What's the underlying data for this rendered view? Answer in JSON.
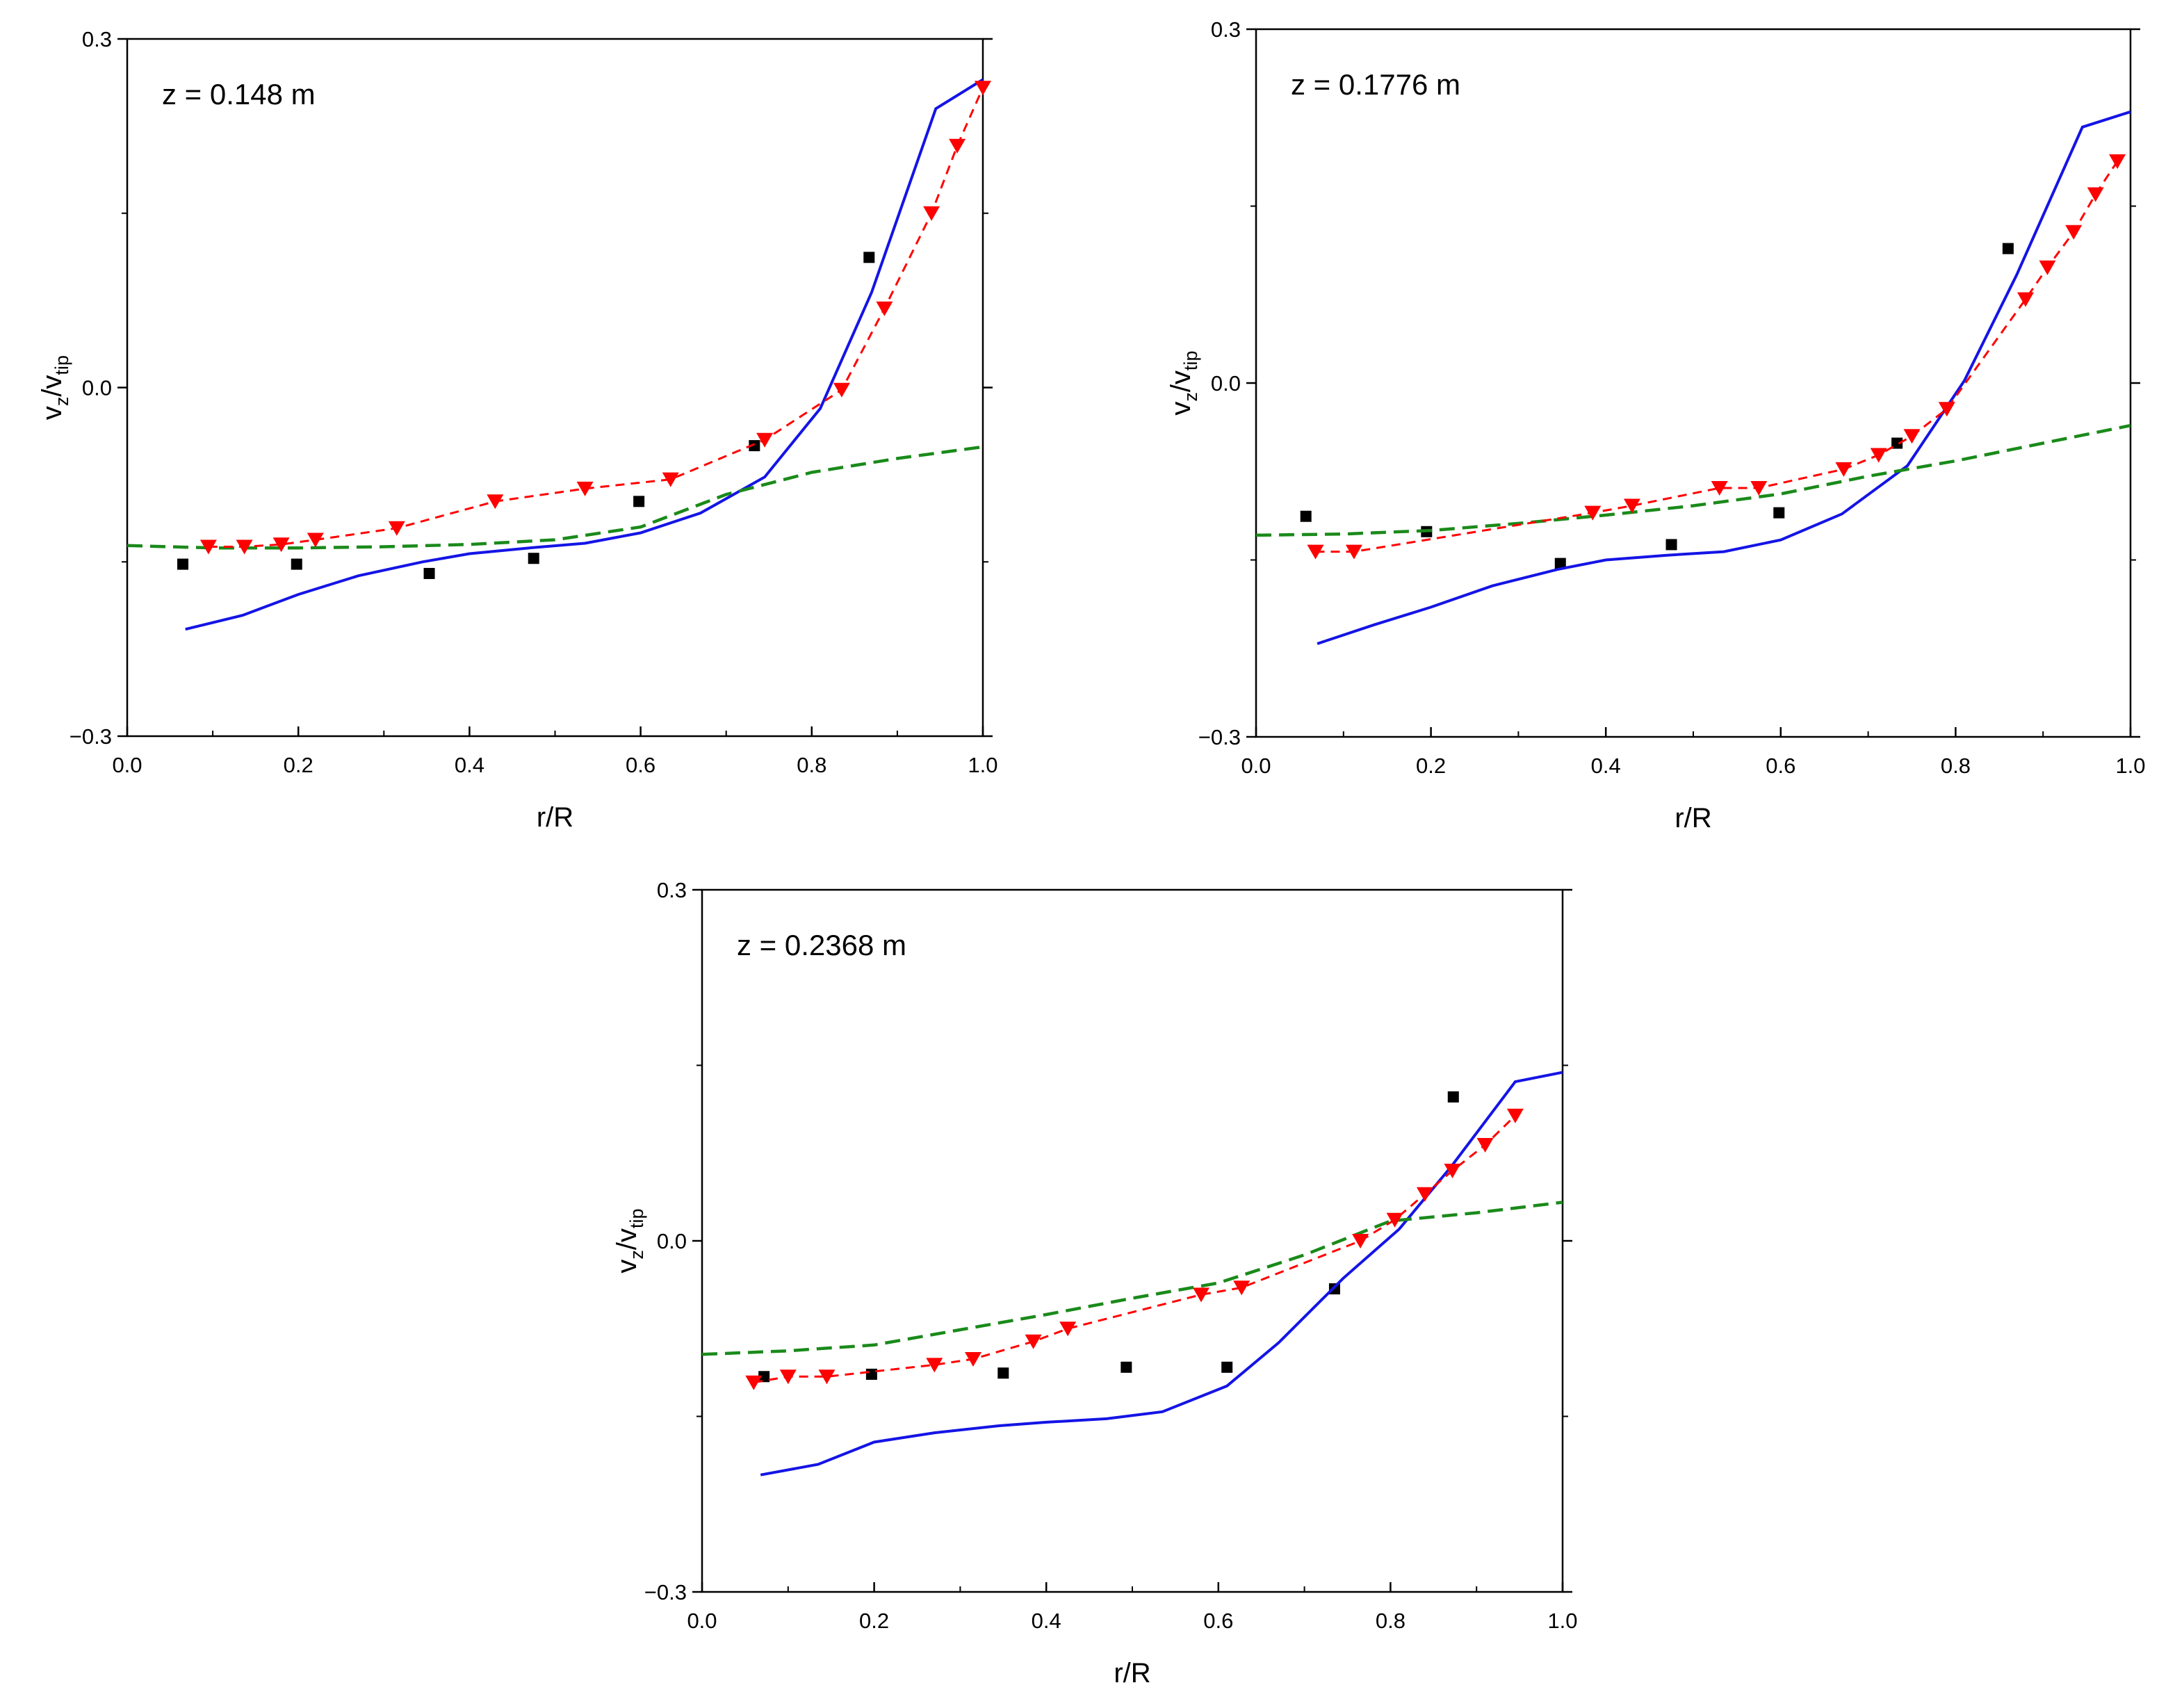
{
  "chart_data": [
    {
      "type": "line",
      "annotation": "z = 0.148 m",
      "xlabel": "r/R",
      "ylabel": {
        "base": "v",
        "sub1": "z",
        "slash": "/v",
        "sub2": "tip"
      },
      "xlim": [
        0.0,
        1.0
      ],
      "ylim": [
        -0.3,
        0.3
      ],
      "xticks": [
        0.0,
        0.2,
        0.4,
        0.6,
        0.8,
        1.0
      ],
      "xtick_labels": [
        "0.0",
        "0.2",
        "0.4",
        "0.6",
        "0.8",
        "1.0"
      ],
      "yticks": [
        -0.3,
        0.0,
        0.3
      ],
      "ytick_labels": [
        "−0.3",
        "0.0",
        "0.3"
      ],
      "series": [
        {
          "name": "experiment-squares",
          "style": "marker-square",
          "color": "#000000",
          "x": [
            0.065,
            0.198,
            0.353,
            0.475,
            0.598,
            0.733,
            0.867
          ],
          "y": [
            -0.152,
            -0.152,
            -0.16,
            -0.147,
            -0.098,
            -0.05,
            0.112
          ]
        },
        {
          "name": "model-blue-solid",
          "style": "solid",
          "color": "#1414e6",
          "x": [
            0.068,
            0.135,
            0.2,
            0.27,
            0.345,
            0.4,
            0.47,
            0.535,
            0.6,
            0.67,
            0.745,
            0.81,
            0.87,
            0.945,
            1.0
          ],
          "y": [
            -0.208,
            -0.196,
            -0.178,
            -0.162,
            -0.15,
            -0.143,
            -0.138,
            -0.134,
            -0.125,
            -0.108,
            -0.077,
            -0.018,
            0.082,
            0.24,
            0.265
          ]
        },
        {
          "name": "model-green-dashed",
          "style": "dashed",
          "color": "#1a8a1a",
          "x": [
            0.0,
            0.1,
            0.2,
            0.3,
            0.4,
            0.5,
            0.6,
            0.7,
            0.8,
            0.9,
            1.0
          ],
          "y": [
            -0.136,
            -0.138,
            -0.138,
            -0.137,
            -0.135,
            -0.131,
            -0.12,
            -0.092,
            -0.073,
            -0.061,
            -0.051
          ]
        },
        {
          "name": "model-red-dashed-triangles",
          "style": "dashed-marker-triangle",
          "color": "#ff0000",
          "x": [
            0.095,
            0.137,
            0.18,
            0.22,
            0.315,
            0.43,
            0.535,
            0.635,
            0.745,
            0.835,
            0.885,
            0.94,
            0.97,
            1.0
          ],
          "y": [
            -0.137,
            -0.137,
            -0.135,
            -0.131,
            -0.121,
            -0.098,
            -0.087,
            -0.079,
            -0.045,
            -0.002,
            0.068,
            0.15,
            0.208,
            0.258
          ]
        }
      ]
    },
    {
      "type": "line",
      "annotation": "z = 0.1776 m",
      "xlabel": "r/R",
      "ylabel": {
        "base": "v",
        "sub1": "z",
        "slash": "/v",
        "sub2": "tip"
      },
      "xlim": [
        0.0,
        1.0
      ],
      "ylim": [
        -0.3,
        0.3
      ],
      "xticks": [
        0.0,
        0.2,
        0.4,
        0.6,
        0.8,
        1.0
      ],
      "xtick_labels": [
        "0.0",
        "0.2",
        "0.4",
        "0.6",
        "0.8",
        "1.0"
      ],
      "yticks": [
        -0.3,
        0.0,
        0.3
      ],
      "ytick_labels": [
        "−0.3",
        "0.0",
        "0.3"
      ],
      "series": [
        {
          "name": "experiment-squares",
          "style": "marker-square",
          "color": "#000000",
          "x": [
            0.057,
            0.195,
            0.348,
            0.475,
            0.598,
            0.733,
            0.86
          ],
          "y": [
            -0.113,
            -0.126,
            -0.153,
            -0.137,
            -0.11,
            -0.051,
            0.114
          ]
        },
        {
          "name": "model-blue-solid",
          "style": "solid",
          "color": "#1414e6",
          "x": [
            0.07,
            0.135,
            0.2,
            0.27,
            0.345,
            0.4,
            0.47,
            0.535,
            0.6,
            0.67,
            0.745,
            0.81,
            0.87,
            0.945,
            1.0
          ],
          "y": [
            -0.221,
            -0.205,
            -0.19,
            -0.172,
            -0.158,
            -0.15,
            -0.146,
            -0.143,
            -0.133,
            -0.111,
            -0.07,
            0.002,
            0.092,
            0.217,
            0.23
          ]
        },
        {
          "name": "model-green-dashed",
          "style": "dashed",
          "color": "#1a8a1a",
          "x": [
            0.0,
            0.1,
            0.2,
            0.3,
            0.4,
            0.5,
            0.6,
            0.7,
            0.8,
            0.9,
            1.0
          ],
          "y": [
            -0.129,
            -0.128,
            -0.125,
            -0.119,
            -0.112,
            -0.104,
            -0.094,
            -0.079,
            -0.066,
            -0.051,
            -0.036
          ]
        },
        {
          "name": "model-red-dashed-triangles",
          "style": "dashed-marker-triangle",
          "color": "#ff0000",
          "x": [
            0.068,
            0.112,
            0.385,
            0.43,
            0.53,
            0.575,
            0.672,
            0.712,
            0.75,
            0.79,
            0.88,
            0.905,
            0.935,
            0.96,
            0.985
          ],
          "y": [
            -0.143,
            -0.143,
            -0.11,
            -0.104,
            -0.089,
            -0.089,
            -0.073,
            -0.061,
            -0.045,
            -0.022,
            0.071,
            0.098,
            0.128,
            0.16,
            0.188
          ]
        }
      ]
    },
    {
      "type": "line",
      "annotation": "z = 0.2368 m",
      "xlabel": "r/R",
      "ylabel": {
        "base": "v",
        "sub1": "z",
        "slash": "/v",
        "sub2": "tip"
      },
      "xlim": [
        0.0,
        1.0
      ],
      "ylim": [
        -0.3,
        0.3
      ],
      "xticks": [
        0.0,
        0.2,
        0.4,
        0.6,
        0.8,
        1.0
      ],
      "xtick_labels": [
        "0.0",
        "0.2",
        "0.4",
        "0.6",
        "0.8",
        "1.0"
      ],
      "yticks": [
        -0.3,
        0.0,
        0.3
      ],
      "ytick_labels": [
        "−0.3",
        "0.0",
        "0.3"
      ],
      "series": [
        {
          "name": "experiment-squares",
          "style": "marker-square",
          "color": "#000000",
          "x": [
            0.072,
            0.197,
            0.35,
            0.493,
            0.61,
            0.735,
            0.873
          ],
          "y": [
            -0.116,
            -0.114,
            -0.113,
            -0.108,
            -0.108,
            -0.041,
            0.123
          ]
        },
        {
          "name": "model-blue-solid",
          "style": "solid",
          "color": "#1414e6",
          "x": [
            0.068,
            0.135,
            0.2,
            0.27,
            0.345,
            0.4,
            0.47,
            0.535,
            0.61,
            0.67,
            0.745,
            0.81,
            0.87,
            0.945,
            1.0
          ],
          "y": [
            -0.2,
            -0.191,
            -0.172,
            -0.164,
            -0.158,
            -0.155,
            -0.152,
            -0.146,
            -0.124,
            -0.087,
            -0.032,
            0.01,
            0.063,
            0.136,
            0.144
          ]
        },
        {
          "name": "model-green-dashed",
          "style": "dashed",
          "color": "#1a8a1a",
          "x": [
            0.0,
            0.1,
            0.2,
            0.3,
            0.4,
            0.5,
            0.6,
            0.7,
            0.8,
            0.9,
            1.0
          ],
          "y": [
            -0.097,
            -0.094,
            -0.089,
            -0.076,
            -0.063,
            -0.049,
            -0.036,
            -0.012,
            0.017,
            0.024,
            0.033
          ]
        },
        {
          "name": "model-red-dashed-triangles",
          "style": "dashed-marker-triangle",
          "color": "#ff0000",
          "x": [
            0.06,
            0.1,
            0.145,
            0.27,
            0.315,
            0.385,
            0.425,
            0.58,
            0.627,
            0.765,
            0.805,
            0.84,
            0.872,
            0.91,
            0.945
          ],
          "y": [
            -0.121,
            -0.116,
            -0.116,
            -0.106,
            -0.101,
            -0.086,
            -0.075,
            -0.046,
            -0.04,
            0.0,
            0.018,
            0.04,
            0.06,
            0.082,
            0.107
          ]
        }
      ]
    }
  ]
}
